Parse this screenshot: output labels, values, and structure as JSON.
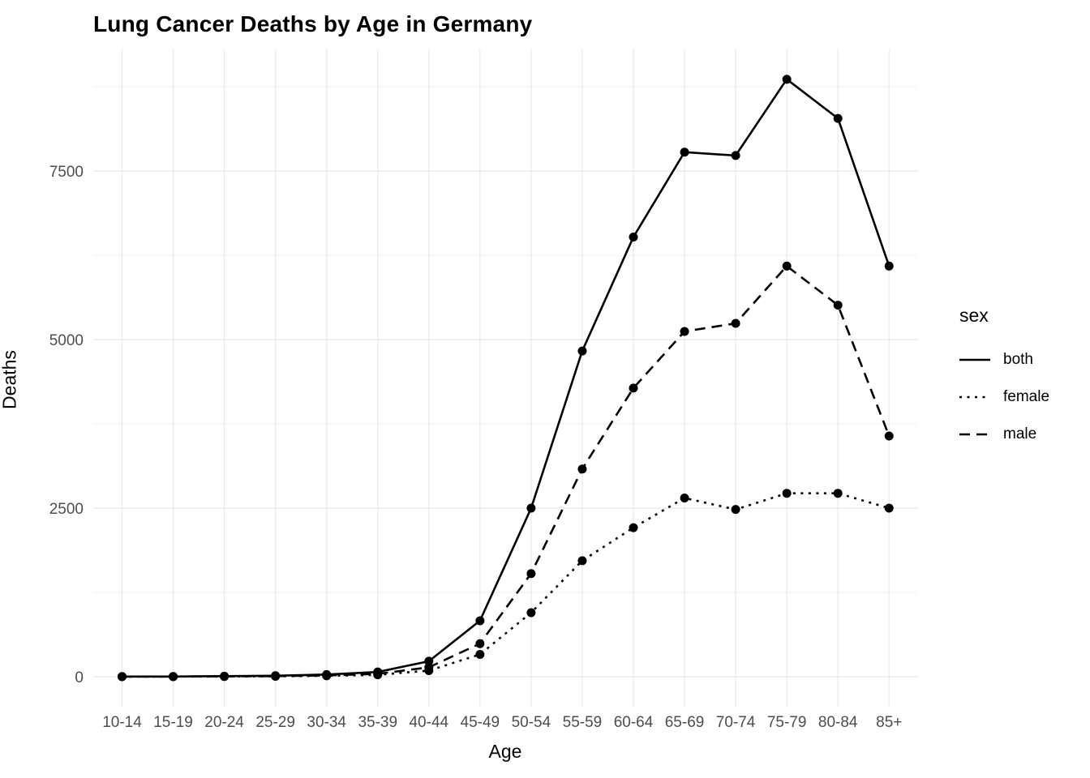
{
  "chart_data": {
    "type": "line",
    "title": "Lung Cancer Deaths by Age in Germany",
    "xlabel": "Age",
    "ylabel": "Deaths",
    "legend_title": "sex",
    "legend_position": "right",
    "grid": true,
    "categories": [
      "10-14",
      "15-19",
      "20-24",
      "25-29",
      "30-34",
      "35-39",
      "40-44",
      "45-49",
      "50-54",
      "55-59",
      "60-64",
      "65-69",
      "70-74",
      "75-79",
      "80-84",
      "85+"
    ],
    "series": [
      {
        "name": "both",
        "linetype": "solid",
        "values": [
          2,
          3,
          8,
          15,
          32,
          70,
          230,
          830,
          2500,
          4830,
          6520,
          7780,
          7730,
          8860,
          8280,
          6090
        ]
      },
      {
        "name": "female",
        "linetype": "dotted",
        "values": [
          1,
          1,
          3,
          6,
          13,
          28,
          90,
          330,
          950,
          1720,
          2210,
          2650,
          2480,
          2720,
          2720,
          2500
        ]
      },
      {
        "name": "male",
        "linetype": "dashed",
        "values": [
          1,
          2,
          5,
          9,
          19,
          42,
          140,
          490,
          1530,
          3080,
          4280,
          5120,
          5240,
          6090,
          5510,
          3570
        ]
      }
    ],
    "y_ticks": [
      0,
      2500,
      5000,
      7500
    ],
    "y_minor_ticks": [
      1250,
      3750,
      6250,
      8750
    ],
    "ylim": [
      0,
      8860
    ],
    "colors": {
      "line": "#000000",
      "grid_major": "#EBEBEB",
      "grid_minor": "#F0F0F0",
      "tick_text": "#4D4D4D",
      "text": "#000000",
      "background": "#FFFFFF"
    }
  }
}
